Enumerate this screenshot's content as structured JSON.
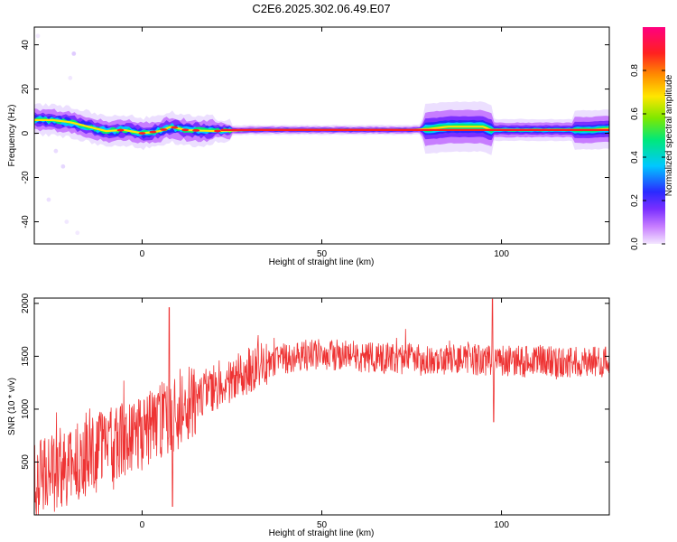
{
  "title": "C2E6.2025.302.06.49.E07",
  "colors": {
    "snr_line": "#ee3333",
    "colormap": [
      "#f3e6ff",
      "#c77dff",
      "#7b2fff",
      "#2a2aff",
      "#00c8ff",
      "#00e87a",
      "#7ee800",
      "#ffe600",
      "#ff8c00",
      "#ff2020",
      "#ff0080"
    ]
  },
  "chart_data": [
    {
      "type": "heatmap",
      "xlabel": "Height of straight line (km)",
      "ylabel": "Frequency (Hz)",
      "xlim": [
        -30,
        130
      ],
      "ylim": [
        -50,
        48
      ],
      "xticks": [
        0,
        50,
        100
      ],
      "xtick_labels": [
        "0",
        "50",
        "100"
      ],
      "yticks": [
        -40,
        -20,
        0,
        20,
        40
      ],
      "ytick_labels": [
        "-40",
        "-20",
        "0",
        "20",
        "40"
      ],
      "colorbar": {
        "label": "Normalized spectral amplitude",
        "range": [
          0.0,
          1.0
        ],
        "ticks": [
          "0.0",
          "0.2",
          "0.4",
          "0.6",
          "0.8"
        ]
      },
      "ridge": {
        "x": [
          -30,
          -25,
          -20,
          -15,
          -10,
          -5,
          0,
          5,
          8,
          12,
          20,
          30,
          50,
          75,
          80,
          85,
          90,
          95,
          97,
          100,
          110,
          125,
          130
        ],
        "freq": [
          6,
          6,
          5,
          3,
          1,
          1.5,
          0,
          1,
          3,
          1.5,
          1,
          1.5,
          1.5,
          1.5,
          2,
          3,
          3,
          3,
          1.5,
          1.5,
          1.5,
          1.5,
          2
        ]
      }
    },
    {
      "type": "line",
      "xlabel": "Height of straight line (km)",
      "ylabel": "SNR (10 * v/v)",
      "xlim": [
        -30,
        130
      ],
      "ylim": [
        0,
        2050
      ],
      "xticks": [
        0,
        50,
        100
      ],
      "xtick_labels": [
        "0",
        "50",
        "100"
      ],
      "yticks": [
        500,
        1000,
        1500,
        2000
      ],
      "ytick_labels": [
        "500",
        "1000",
        "1500",
        "2000"
      ],
      "trend": {
        "x": [
          -30,
          -20,
          -10,
          0,
          5,
          10,
          15,
          20,
          30,
          40,
          50,
          60,
          70,
          80,
          90,
          100,
          110,
          120,
          130
        ],
        "y": [
          350,
          480,
          620,
          780,
          880,
          1000,
          1100,
          1200,
          1380,
          1480,
          1520,
          1500,
          1480,
          1460,
          1470,
          1460,
          1450,
          1440,
          1450
        ]
      },
      "spikes": [
        {
          "x": 7.5,
          "y": 1960
        },
        {
          "x": 8.5,
          "y": 80
        },
        {
          "x": 97.5,
          "y": 2040
        },
        {
          "x": 97.8,
          "y": 880
        }
      ]
    }
  ]
}
